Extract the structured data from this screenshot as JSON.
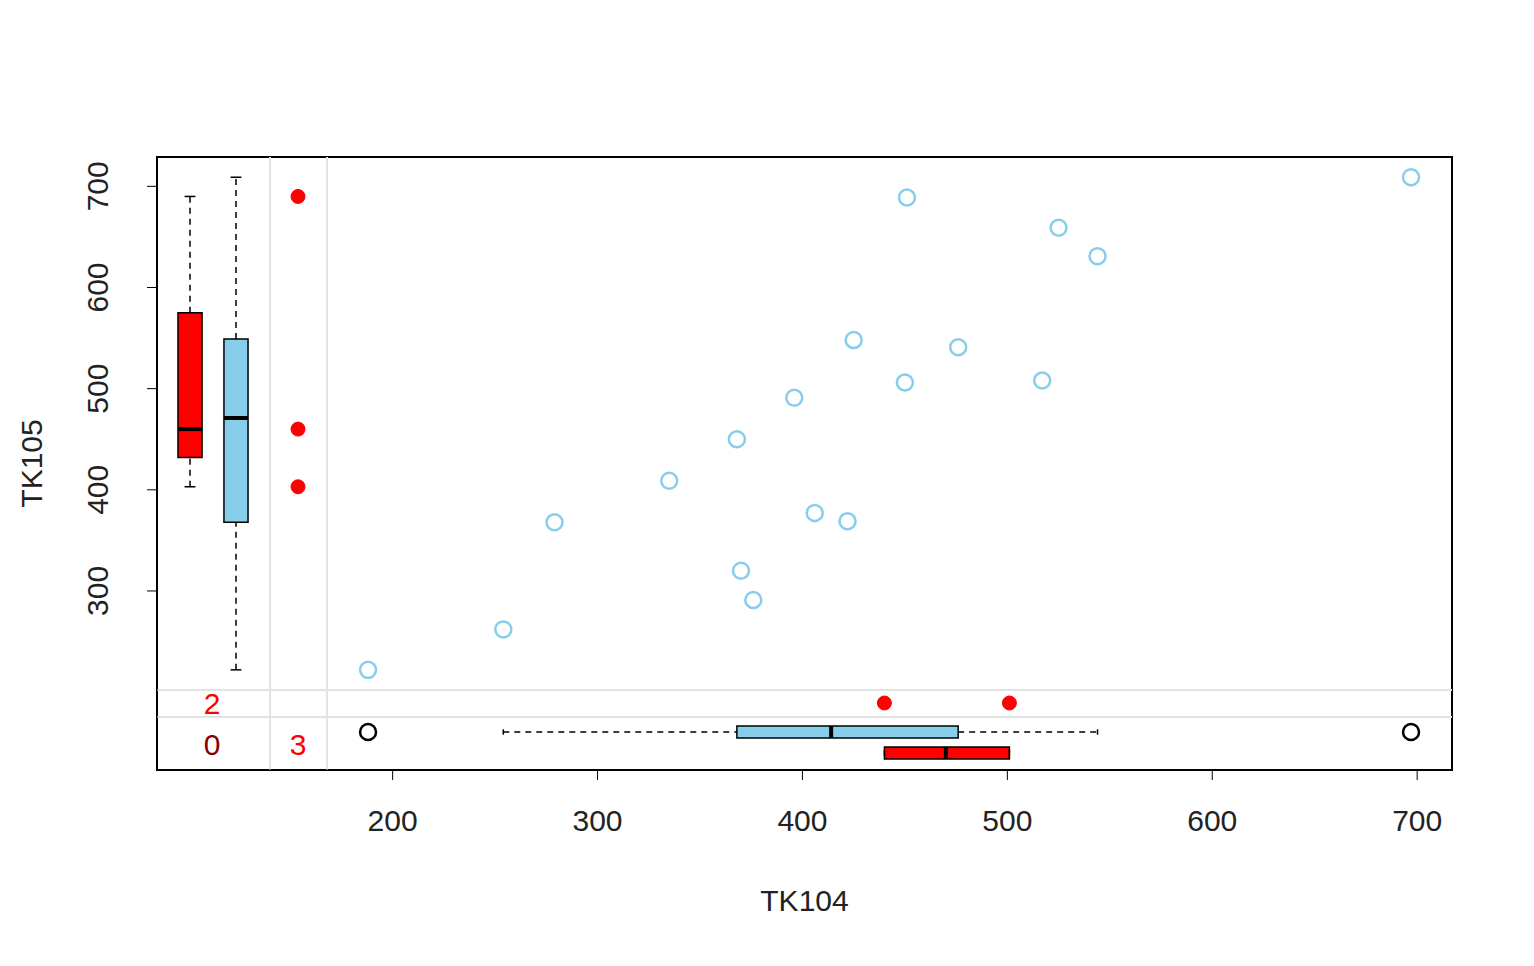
{
  "chart_data": {
    "type": "scatter",
    "x_label": "TK104",
    "y_label": "TK105",
    "xlim": [
      85,
      717
    ],
    "ylim": [
      123,
      729
    ],
    "xticks": [
      200,
      300,
      400,
      500,
      600,
      700
    ],
    "yticks": [
      300,
      400,
      500,
      600,
      700
    ],
    "observed": {
      "color": "#87ceeb",
      "marker": "open_circle",
      "x": [
        188,
        254,
        279,
        335,
        368,
        370,
        376,
        396,
        406,
        422,
        425,
        450,
        451,
        476,
        517,
        525,
        544,
        697
      ],
      "y": [
        222,
        262,
        368,
        409,
        450,
        320,
        291,
        491,
        377,
        369,
        548,
        506,
        689,
        541,
        508,
        659,
        631,
        709
      ]
    },
    "missing_x": {
      "color": "#ff0000",
      "marker": "filled_circle",
      "y": [
        690,
        460,
        403
      ]
    },
    "missing_y": {
      "color": "#ff0000",
      "marker": "filled_circle",
      "x": [
        440,
        501
      ]
    },
    "boxplots": {
      "y_missing": {
        "color": "#ff0000",
        "whisker_low": 403,
        "q1": 432,
        "median": 460,
        "q3": 575,
        "whisker_high": 690,
        "outliers": []
      },
      "y_observed": {
        "color": "#87ceeb",
        "whisker_low": 222,
        "q1": 368,
        "median": 471,
        "q3": 549,
        "whisker_high": 709,
        "outliers": []
      },
      "x_observed": {
        "color": "#87ceeb",
        "whisker_low": 254,
        "q1": 368,
        "median": 414,
        "q3": 476,
        "whisker_high": 544,
        "outliers": [
          188,
          697
        ]
      },
      "x_missing": {
        "color": "#ff0000",
        "whisker_low": 440,
        "q1": 440,
        "median": 470,
        "q3": 501,
        "whisker_high": 501,
        "outliers": []
      }
    },
    "missing_counts": {
      "values": [
        2,
        3,
        0
      ],
      "colors": [
        "#ff0000",
        "#ff0000",
        "#8b0000"
      ]
    }
  }
}
